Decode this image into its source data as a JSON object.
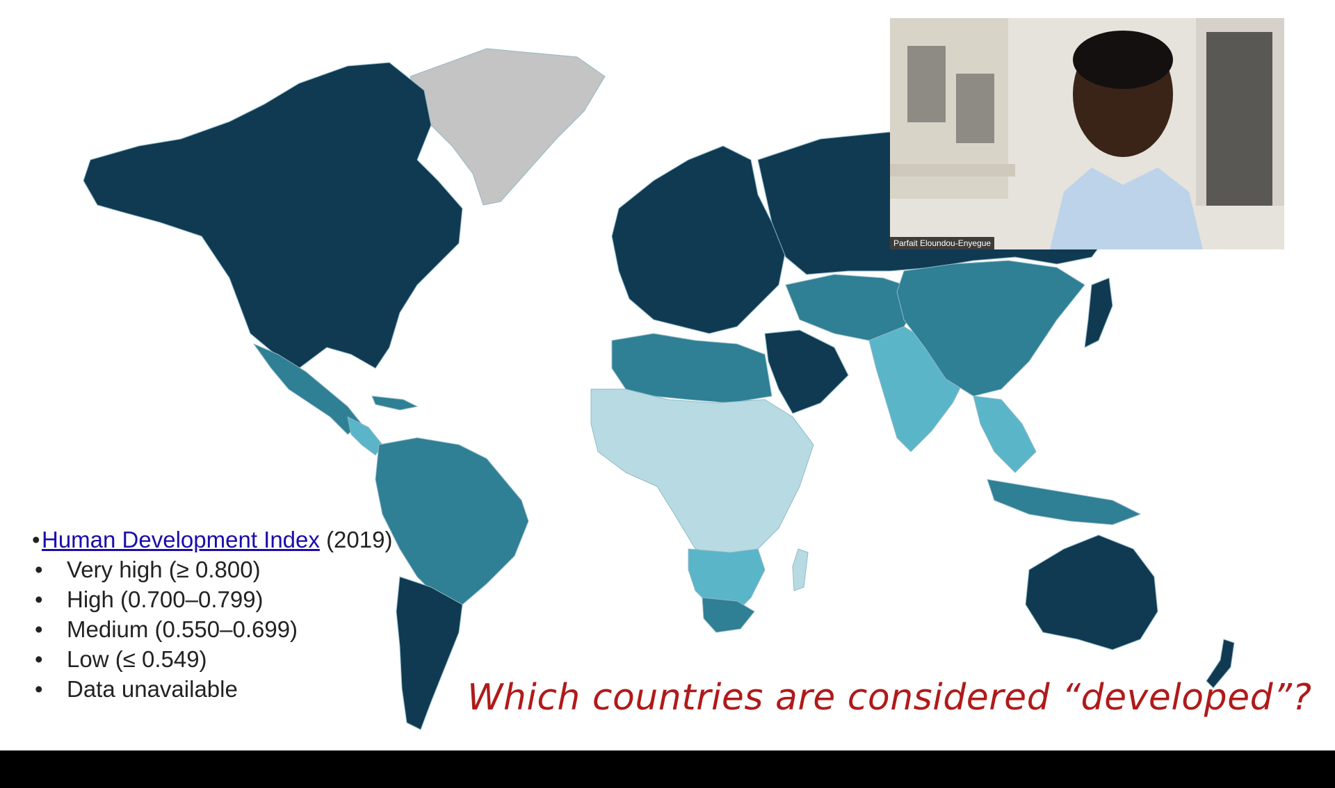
{
  "slide": {
    "legend": {
      "bullet": "•",
      "link_text": "Human Development Index",
      "year": "(2019)",
      "items": [
        {
          "marker": "•",
          "label": "Very high (≥ 0.800)"
        },
        {
          "marker": "•",
          "label": "High (0.700–0.799)"
        },
        {
          "marker": "•",
          "label": "Medium (0.550–0.699)"
        },
        {
          "marker": "•",
          "label": "Low (≤ 0.549)"
        },
        {
          "marker": "•",
          "label": "Data unavailable"
        }
      ]
    },
    "question": "Which countries are considered “developed”?",
    "colors": {
      "very_high": "#103a52",
      "high": "#2f7f95",
      "medium": "#5ab5c9",
      "low": "#b8dbe3",
      "unavailable": "#c4c4c4",
      "question_text": "#b01a1a"
    }
  },
  "video": {
    "participant_name": "Parfait Eloundou-Enyegue"
  }
}
